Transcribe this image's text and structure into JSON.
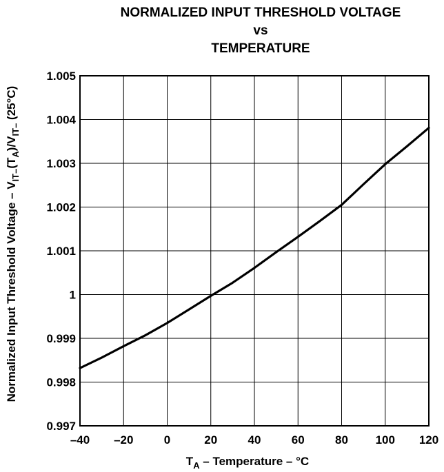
{
  "chart_data": {
    "type": "line",
    "title": [
      "NORMALIZED INPUT THRESHOLD VOLTAGE",
      "vs",
      "TEMPERATURE"
    ],
    "xlabel": {
      "prefix": "T",
      "sub": "A",
      "rest": " – Temperature – °C"
    },
    "ylabel": {
      "parts": [
        {
          "t": "Normalized Input Threshold Voltage – V",
          "sub": false
        },
        {
          "t": "IT–",
          "sub": true
        },
        {
          "t": "(T",
          "sub": false
        },
        {
          "t": "A",
          "sub": true
        },
        {
          "t": ")/V",
          "sub": false
        },
        {
          "t": "IT–",
          "sub": true
        },
        {
          "t": " (25°C)",
          "sub": false
        }
      ]
    },
    "xlim": [
      -40,
      120
    ],
    "ylim": [
      0.997,
      1.005
    ],
    "x_ticks": [
      -40,
      -20,
      0,
      20,
      40,
      60,
      80,
      100,
      120
    ],
    "x_tick_labels": [
      "–40",
      "–20",
      "0",
      "20",
      "40",
      "60",
      "80",
      "100",
      "120"
    ],
    "y_ticks": [
      0.997,
      0.998,
      0.999,
      1.0,
      1.001,
      1.002,
      1.003,
      1.004,
      1.005
    ],
    "y_tick_labels": [
      "0.997",
      "0.998",
      "0.999",
      "1",
      "1.001",
      "1.002",
      "1.003",
      "1.004",
      "1.005"
    ],
    "grid": true,
    "series": [
      {
        "x": [
          -40,
          -30,
          -20,
          -10,
          0,
          10,
          20,
          30,
          40,
          50,
          60,
          70,
          80,
          90,
          100,
          110,
          120
        ],
        "y": [
          0.99832,
          0.99856,
          0.99882,
          0.99907,
          0.99935,
          0.99966,
          0.99997,
          1.00027,
          1.00061,
          1.00097,
          1.00132,
          1.00168,
          1.00205,
          1.00252,
          1.00298,
          1.00339,
          1.00381
        ],
        "color": "#000000"
      }
    ]
  }
}
